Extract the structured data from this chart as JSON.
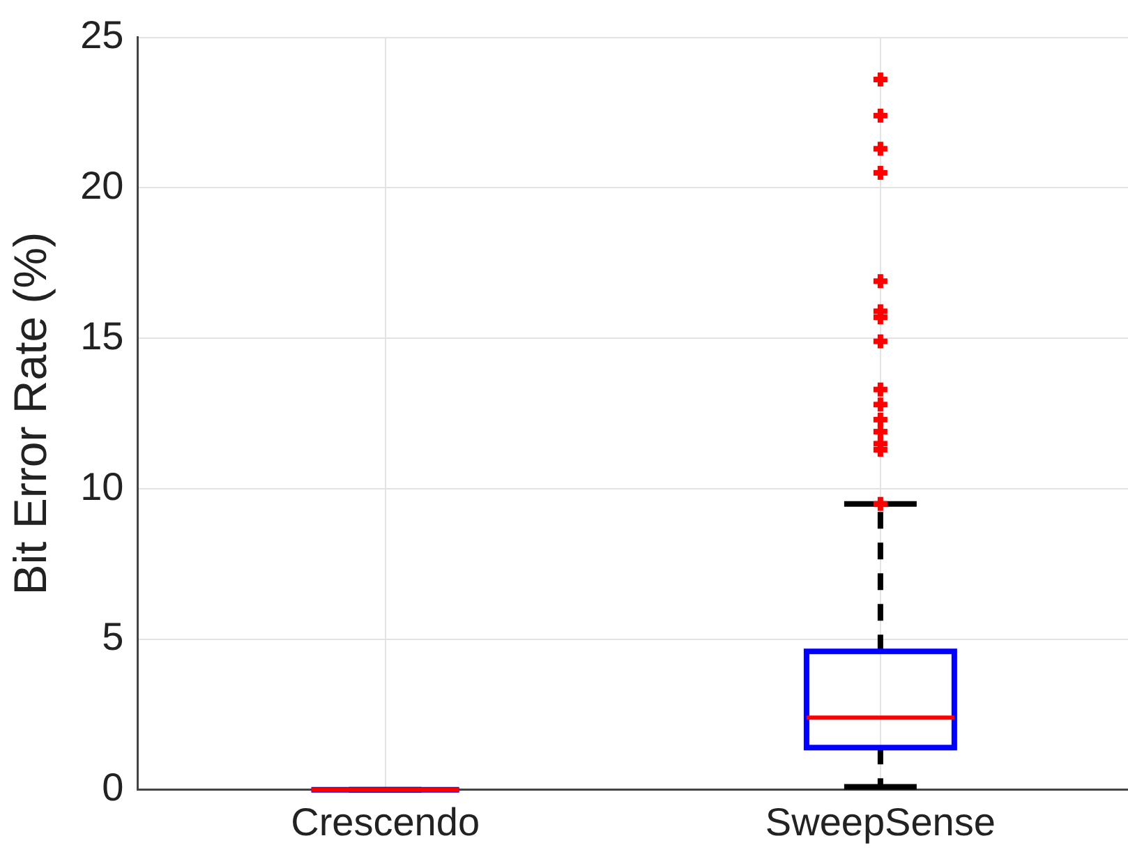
{
  "chart_data": {
    "type": "box",
    "ylabel": "Bit Error Rate (%)",
    "categories": [
      "Crescendo",
      "SweepSense"
    ],
    "boxes": [
      {
        "low": 0,
        "q1": 0,
        "median": 0,
        "q3": 0,
        "high": 0
      },
      {
        "low": 0.1,
        "q1": 1.4,
        "median": 2.4,
        "q3": 4.6,
        "high": 9.5,
        "outliers": [
          9.5,
          11.3,
          11.5,
          11.9,
          12.3,
          12.8,
          13.3,
          14.9,
          15.7,
          15.9,
          16.9,
          20.5,
          21.3,
          22.4,
          23.6
        ]
      }
    ],
    "color": "#0000ff",
    "ylim": [
      0,
      25
    ],
    "yticks": [
      0,
      5,
      10,
      15,
      20,
      25
    ],
    "grid": true,
    "marker": "cross",
    "line_style": "dashed"
  }
}
